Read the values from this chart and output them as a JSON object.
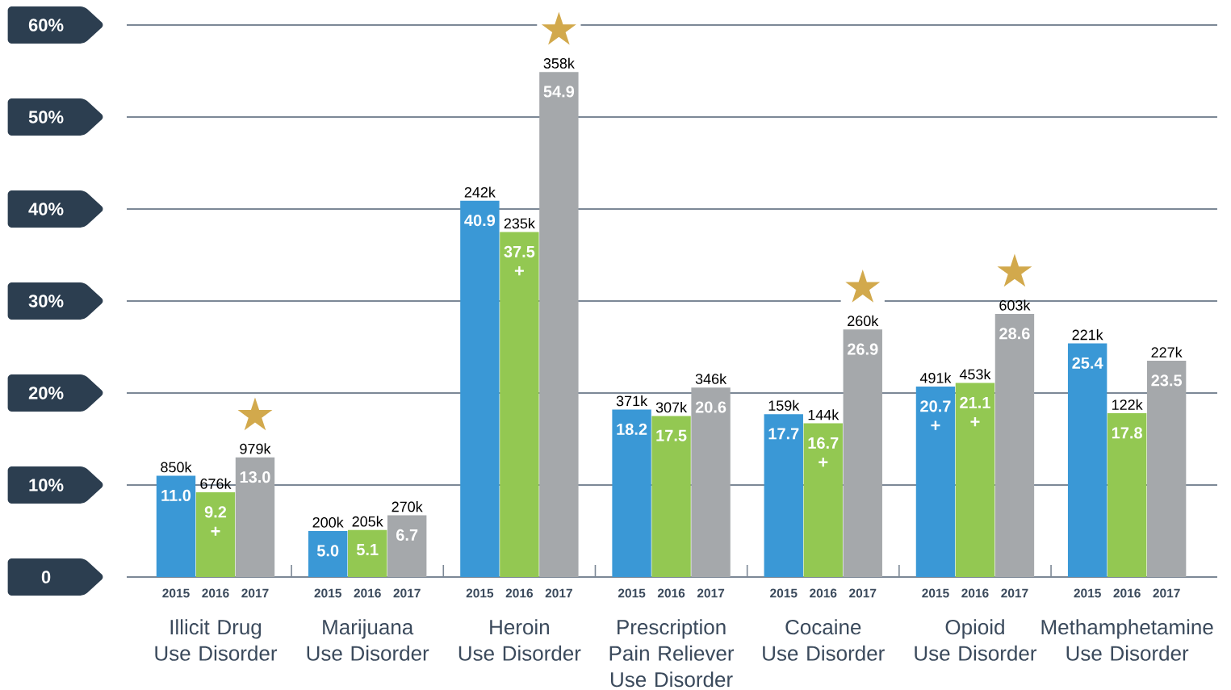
{
  "chart_data": {
    "type": "bar",
    "categories": [
      "Illicit Drug\nUse Disorder",
      "Marijuana\nUse Disorder",
      "Heroin\nUse Disorder",
      "Prescription\nPain Reliever\nUse Disorder",
      "Cocaine\nUse Disorder",
      "Opioid\nUse Disorder",
      "Methamphetamine\nUse Disorder"
    ],
    "series": [
      {
        "name": "2015",
        "color": "#3a98d6",
        "values": [
          11.0,
          5.0,
          40.9,
          18.2,
          17.7,
          20.7,
          25.4
        ],
        "value_labels": [
          "11.0",
          "5.0",
          "40.9",
          "18.2",
          "17.7",
          "20.7",
          "25.4"
        ]
      },
      {
        "name": "2016",
        "color": "#93c852",
        "values": [
          9.2,
          5.1,
          37.5,
          17.5,
          16.7,
          21.1,
          17.8
        ],
        "value_labels": [
          "9.2",
          "5.1",
          "37.5",
          "17.5",
          "16.7",
          "21.1",
          "17.8"
        ]
      },
      {
        "name": "2017",
        "color": "#a5a8ab",
        "values": [
          13.0,
          6.7,
          54.9,
          20.6,
          26.9,
          28.6,
          23.5
        ],
        "value_labels": [
          "13.0",
          "6.7",
          "54.9",
          "20.6",
          "26.9",
          "28.6",
          "23.5"
        ]
      }
    ],
    "ylim": [
      0,
      60
    ],
    "yticks": [
      0,
      {
        "value": 10,
        "label": "10%"
      },
      {
        "value": 20,
        "label": "20%"
      },
      {
        "value": 30,
        "label": "30%"
      },
      {
        "value": 40,
        "label": "40%"
      },
      {
        "value": 50,
        "label": "50%"
      },
      {
        "value": 60,
        "label": "60%"
      }
    ],
    "grid": "y",
    "annotations": [
      "850k",
      "200k",
      "242k",
      "371k",
      "159k",
      "491k",
      "221k",
      "676k",
      "205k",
      "235k",
      "307k",
      "144k",
      "453k",
      "122k",
      "979k",
      "270k",
      "358k",
      "346k",
      "260k",
      "603k",
      "227k",
      "★",
      "★",
      "★",
      "★",
      {
        "text": "+",
        "x": "Illicit Drug\nUse Disorder",
        "y": 9.2
      },
      {
        "text": "+",
        "x": "Heroin\nUse Disorder",
        "y": 37.5
      },
      {
        "text": "+",
        "x": "Cocaine\nUse Disorder",
        "y": 16.7
      },
      {
        "text": "+",
        "x": "Opioid\nUse Disorder",
        "y": 20.7
      },
      {
        "text": "+",
        "x": "Opioid\nUse Disorder",
        "y": 21.1
      }
    ]
  }
}
